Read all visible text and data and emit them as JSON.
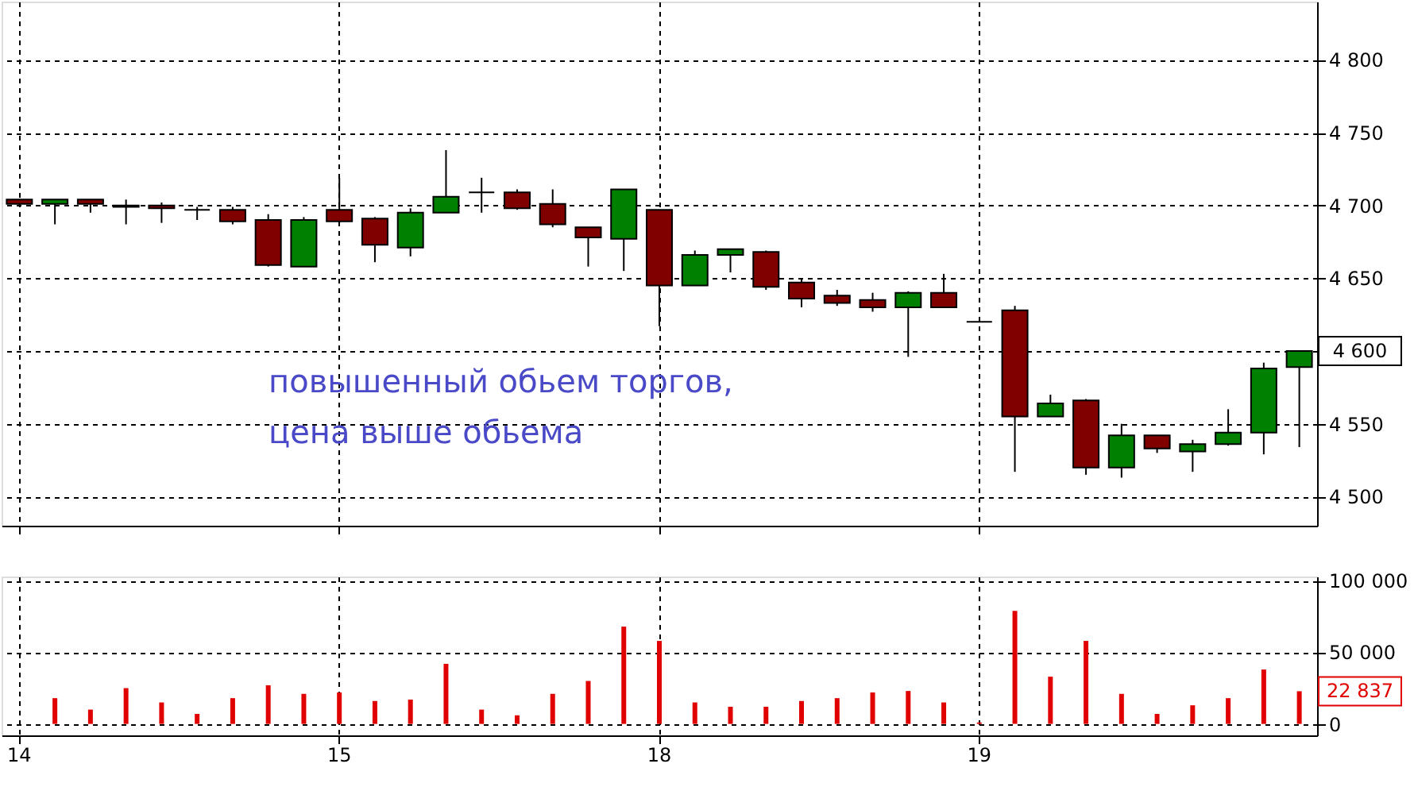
{
  "chart_data": [
    {
      "type": "candlestick",
      "categories": [
        "14",
        null,
        null,
        null,
        null,
        null,
        null,
        null,
        null,
        "15",
        null,
        null,
        null,
        null,
        null,
        null,
        null,
        null,
        "18",
        null,
        null,
        null,
        null,
        null,
        null,
        null,
        null,
        "19",
        null,
        null,
        null,
        null,
        null,
        null,
        null,
        null,
        null
      ],
      "ohlc": [
        [
          4704,
          4704,
          4700,
          4701
        ],
        [
          4701,
          4704,
          4687,
          4704
        ],
        [
          4704,
          4704,
          4695,
          4701
        ],
        [
          4700,
          4704,
          4687,
          4699
        ],
        [
          4700,
          4702,
          4688,
          4698
        ],
        [
          4697,
          4699,
          4690,
          4697
        ],
        [
          4697,
          4699,
          4687,
          4689
        ],
        [
          4690,
          4694,
          4658,
          4659
        ],
        [
          4658,
          4692,
          4658,
          4690
        ],
        [
          4697,
          4719,
          4688,
          4689
        ],
        [
          4691,
          4692,
          4661,
          4673
        ],
        [
          4671,
          4698,
          4665,
          4695
        ],
        [
          4695,
          4738,
          4695,
          4706
        ],
        [
          4709,
          4719,
          4695,
          4709
        ],
        [
          4709,
          4711,
          4697,
          4698
        ],
        [
          4701,
          4711,
          4685,
          4687
        ],
        [
          4685,
          4685,
          4658,
          4678
        ],
        [
          4677,
          4711,
          4655,
          4711
        ],
        [
          4697,
          4697,
          4617,
          4645
        ],
        [
          4645,
          4669,
          4645,
          4666
        ],
        [
          4666,
          4670,
          4654,
          4670
        ],
        [
          4668,
          4669,
          4642,
          4644
        ],
        [
          4647,
          4650,
          4630,
          4636
        ],
        [
          4638,
          4642,
          4631,
          4633
        ],
        [
          4635,
          4640,
          4627,
          4630
        ],
        [
          4630,
          4641,
          4596,
          4640
        ],
        [
          4640,
          4653,
          4630,
          4630
        ],
        [
          4620,
          4620,
          4620,
          4620
        ],
        [
          4628,
          4631,
          4517,
          4555
        ],
        [
          4555,
          4570,
          4555,
          4564
        ],
        [
          4566,
          4567,
          4515,
          4520
        ],
        [
          4520,
          4550,
          4513,
          4542
        ],
        [
          4542,
          4542,
          4530,
          4533
        ],
        [
          4531,
          4539,
          4517,
          4536
        ],
        [
          4536,
          4560,
          4535,
          4544
        ],
        [
          4544,
          4592,
          4529,
          4588
        ],
        [
          4589,
          4600,
          4534,
          4600
        ]
      ],
      "colors": [
        "#800000",
        "#008000",
        "#800000",
        "#000000",
        "#800000",
        "#000000",
        "#800000",
        "#800000",
        "#008000",
        "#800000",
        "#800000",
        "#008000",
        "#008000",
        "#000000",
        "#800000",
        "#800000",
        "#800000",
        "#008000",
        "#800000",
        "#008000",
        "#008000",
        "#800000",
        "#800000",
        "#800000",
        "#800000",
        "#008000",
        "#800000",
        "#000000",
        "#800000",
        "#008000",
        "#800000",
        "#008000",
        "#800000",
        "#008000",
        "#008000",
        "#008000",
        "#008000"
      ],
      "ylim": [
        4480,
        4840
      ],
      "yticks": [
        {
          "value": 4500,
          "label": "4 500"
        },
        {
          "value": 4550,
          "label": "4 550"
        },
        {
          "value": 4600,
          "label": null
        },
        {
          "value": 4650,
          "label": "4 650"
        },
        {
          "value": 4700,
          "label": "4 700"
        },
        {
          "value": 4750,
          "label": "4 750"
        },
        {
          "value": 4800,
          "label": "4 800"
        }
      ],
      "grid": true,
      "tick_labels": "y",
      "annotations": [
        "повышенный обьем торгов,",
        "цена выше обьема",
        "4 600"
      ]
    },
    {
      "type": "bar",
      "categories": [
        "14",
        null,
        null,
        null,
        null,
        null,
        null,
        null,
        null,
        "15",
        null,
        null,
        null,
        null,
        null,
        null,
        null,
        null,
        "18",
        null,
        null,
        null,
        null,
        null,
        null,
        null,
        null,
        "19",
        null,
        null,
        null,
        null,
        null,
        null,
        null,
        null,
        null
      ],
      "values": [
        null,
        18000,
        10000,
        25000,
        15000,
        7000,
        18000,
        27000,
        21000,
        22000,
        16000,
        17000,
        42000,
        10000,
        6000,
        21000,
        30000,
        68000,
        58000,
        15000,
        12000,
        12000,
        16000,
        18000,
        22000,
        23000,
        15000,
        1000,
        79000,
        33000,
        58000,
        21000,
        7000,
        13000,
        18000,
        38000,
        22837
      ],
      "color": "#e00000",
      "ylim": [
        -8000,
        103000
      ],
      "yticks": [
        0,
        {
          "value": 50000,
          "label": "50 000"
        },
        {
          "value": 100000,
          "label": "100 000"
        }
      ],
      "grid": true,
      "annotations": [
        "22 837"
      ]
    }
  ]
}
